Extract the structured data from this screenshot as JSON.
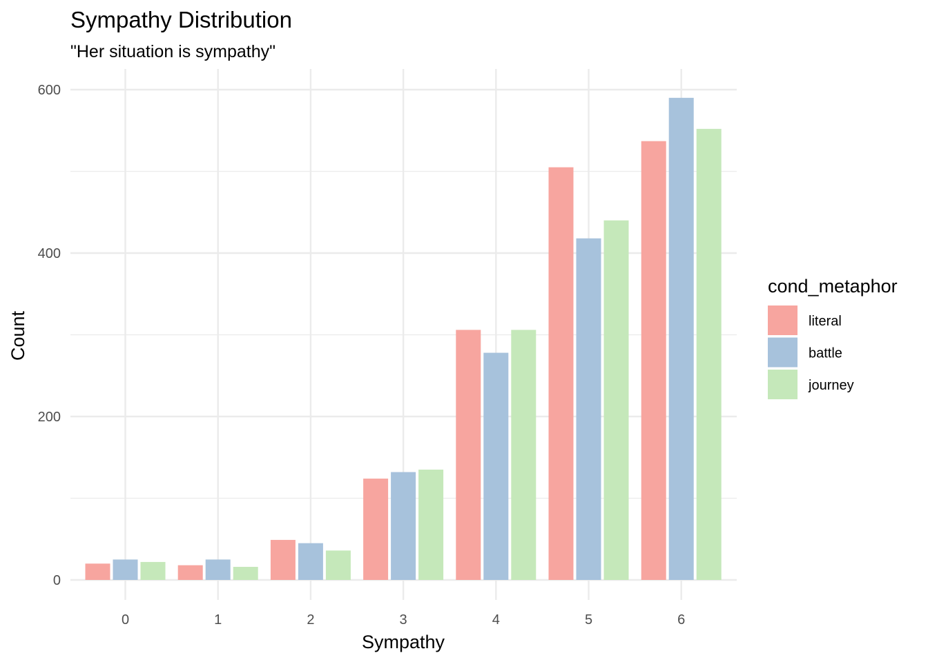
{
  "chart_data": {
    "type": "bar",
    "title": "Sympathy Distribution",
    "subtitle": "\"Her situation is sympathy\"",
    "xlabel": "Sympathy",
    "ylabel": "Count",
    "categories": [
      "0",
      "1",
      "2",
      "3",
      "4",
      "5",
      "6"
    ],
    "ylim": [
      0,
      620
    ],
    "yticks": [
      0,
      200,
      400,
      600
    ],
    "grid": true,
    "legend": {
      "title": "cond_metaphor",
      "placement": "right"
    },
    "series": [
      {
        "name": "literal",
        "color": "#F7A59F",
        "values": [
          20,
          18,
          49,
          124,
          306,
          505,
          537
        ]
      },
      {
        "name": "battle",
        "color": "#A7C2DC",
        "values": [
          25,
          25,
          45,
          132,
          278,
          418,
          590
        ]
      },
      {
        "name": "journey",
        "color": "#C5E8BA",
        "values": [
          22,
          16,
          36,
          135,
          306,
          440,
          552
        ]
      }
    ]
  }
}
